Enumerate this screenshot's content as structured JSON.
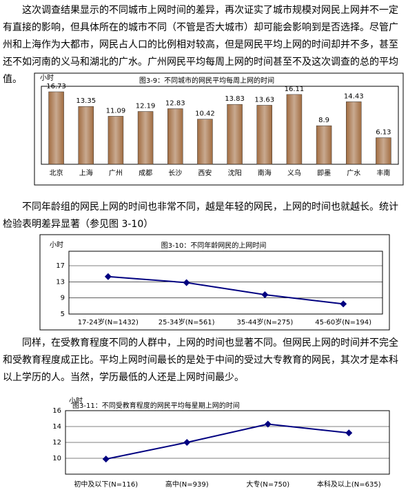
{
  "paragraphs": [
    "这次调查结果显示的不同城市上网时间的差异，再次证实了城市规模对网民上网并不一定有直接的影响，但具体所在的城市不同（不管是否大城市）却可能会影响到是否选择。尽管广州和上海作为大都市，网民占人口的比例相对较高，但是网民平均上网的时间却并不多，甚至还不如河南的义马和湖北的广水。广州网民平均每周上网的时间甚至不及这次调查的总的平均值。",
    "不同年龄组的网民上网的时间也非常不同，越是年轻的网民，上网的时间也就越长。统计检验表明差异显著（参见图 3-10）",
    "同样，在受教育程度不同的人群中，上网的时间也显著不同。但网民上网的时间并不完全和受教育程度成正比。平均上网时间最长的是处于中间的受过大专教育的网民，其次才是本科以上学历的人。当然，学历最低的人还是上网时间最少。"
  ],
  "chart_data": [
    {
      "type": "bar",
      "title": "图3-9：不同城市的网民平均每周上网的时间",
      "y_label": "小时",
      "categories": [
        "北京",
        "上海",
        "广州",
        "成都",
        "长沙",
        "西安",
        "沈阳",
        "南海",
        "义乌",
        "即墨",
        "广水",
        "丰南"
      ],
      "values": [
        16.73,
        13.35,
        11.09,
        12.19,
        12.83,
        10.42,
        13.83,
        13.63,
        16.11,
        8.9,
        14.43,
        6.13
      ],
      "color": "#9c6436",
      "ylim": [
        0,
        18
      ],
      "grid": false
    },
    {
      "type": "line",
      "title": "图3-10：不同年龄网民的上网时间",
      "y_label": "小时",
      "categories": [
        "17-24岁(N=1432)",
        "25-34岁(N=561)",
        "35-44岁(N=275)",
        "45-60岁(N=194)"
      ],
      "values": [
        14.3,
        12.8,
        9.8,
        7.5
      ],
      "color": "#000080",
      "ylim": [
        5,
        20.6
      ],
      "yticks": [
        5,
        9,
        13,
        17
      ],
      "grid": true
    },
    {
      "type": "line",
      "title": "图3-11：不同受教育程度的网民平均每星期上网的时间",
      "y_label": "小时",
      "categories": [
        "初中及以下(N=116)",
        "高中(N=939)",
        "大专(N=750)",
        "本科及以上(N=635)"
      ],
      "values": [
        9.9,
        12.0,
        14.3,
        13.2
      ],
      "color": "#000080",
      "ylim": [
        8,
        16
      ],
      "yticks": [
        10,
        12,
        14,
        16
      ],
      "grid": true
    }
  ]
}
